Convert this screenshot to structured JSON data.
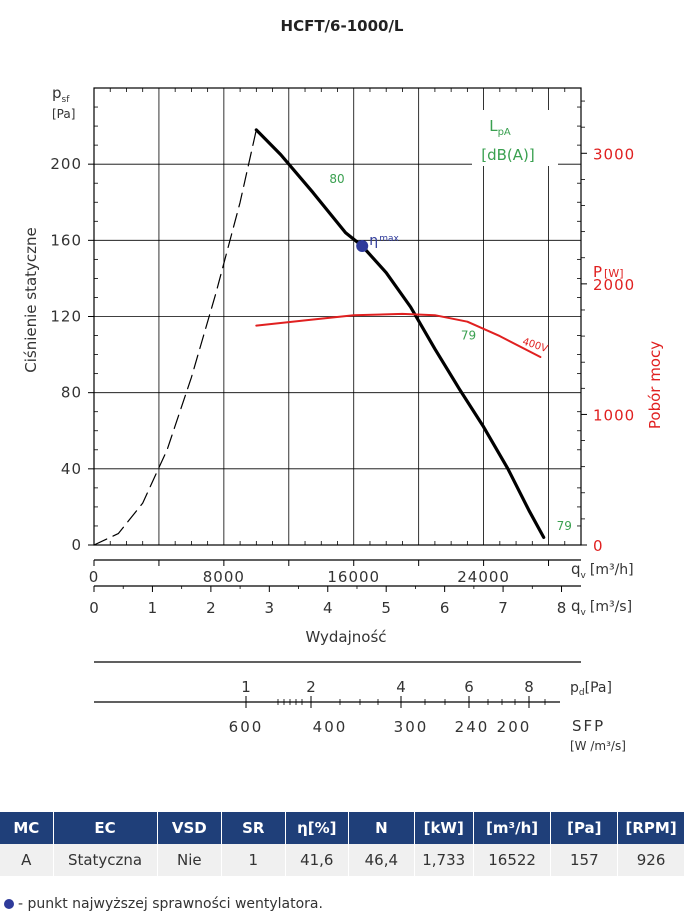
{
  "chart_data": {
    "type": "line",
    "title": "HCFT/6-1000/L",
    "ylabel": "Ciśnienie statyczne",
    "ylabel_symbol": "p",
    "ylabel_symbol_sub": "sf",
    "ylabel_unit": "[Pa]",
    "ylim": [
      0,
      240
    ],
    "yticks": [
      "0",
      "40",
      "80",
      "120",
      "160",
      "200"
    ],
    "y2label": "Pobór mocy",
    "y2label_symbol": "P",
    "y2label_unit": "[W]",
    "y2lim": [
      0,
      3500
    ],
    "y2ticks": [
      "0",
      "1000",
      "2000",
      "3000"
    ],
    "xlabel": "Wydajność",
    "x1_symbol": "q",
    "x1_symbol_sub": "v",
    "x1_unit": "[m³/h]",
    "x1ticks": [
      "0",
      "8000",
      "16000",
      "24000"
    ],
    "x2_symbol": "q",
    "x2_symbol_sub": "v",
    "x2_unit": "[m³/s]",
    "x2ticks": [
      "0",
      "1",
      "2",
      "3",
      "4",
      "5",
      "6",
      "7",
      "8"
    ],
    "xlim_m3h": [
      0,
      30000
    ],
    "sound_label_top": "L",
    "sound_label_sub": "pA",
    "sound_label_unit": "[dB(A)]",
    "series": [
      {
        "name": "",
        "style": "solid",
        "color": "#000000",
        "x": [
          10000,
          11500,
          13500,
          15500,
          16522,
          18000,
          19500,
          21000,
          22500,
          24000,
          25500,
          26800,
          27700
        ],
        "y": [
          218,
          205,
          185,
          164,
          157,
          143,
          125,
          103,
          82,
          62,
          40,
          18,
          4
        ]
      },
      {
        "name": "",
        "style": "dashed",
        "color": "#000000",
        "x": [
          0,
          1500,
          3000,
          4500,
          6000,
          7500,
          9000,
          10000
        ],
        "y": [
          0,
          6,
          22,
          50,
          88,
          132,
          180,
          218
        ]
      },
      {
        "name": "400V",
        "style": "solid",
        "color": "#e02020",
        "axis": "y2",
        "x": [
          10000,
          13000,
          16000,
          19000,
          21000,
          23000,
          25000,
          27500
        ],
        "y": [
          1680,
          1720,
          1760,
          1770,
          1760,
          1710,
          1600,
          1440
        ]
      }
    ],
    "sound_labels": [
      {
        "text": "80",
        "x": 14500,
        "y": 190
      },
      {
        "text": "79",
        "x": 22600,
        "y": 108
      },
      {
        "text": "79",
        "x": 28500,
        "y": 8
      }
    ],
    "eta_point": {
      "label": "η",
      "label_sup": "max",
      "x": 16522,
      "y": 157
    },
    "pd_scale": {
      "label": "p",
      "label_sub": "d",
      "unit": "[Pa]",
      "ticks": [
        "1",
        "2",
        "4",
        "6",
        "8"
      ]
    },
    "sfp_scale": {
      "label": "SFP",
      "unit": "[W /m³/s]",
      "ticks": [
        "600",
        "400",
        "300",
        "240",
        "200"
      ]
    }
  },
  "table": {
    "headers": [
      "MC",
      "EC",
      "VSD",
      "SR",
      "η[%]",
      "N",
      "[kW]",
      "[m³/h]",
      "[Pa]",
      "[RPM]"
    ],
    "row": [
      "A",
      "Statyczna",
      "Nie",
      "1",
      "41,6",
      "46,4",
      "1,733",
      "16522",
      "157",
      "926"
    ]
  },
  "note": "- punkt najwyższej sprawności wentylatora.",
  "colors": {
    "curve": "#000000",
    "power": "#e02020",
    "sound": "#3aa050",
    "eta": "#2e3a9a",
    "header_bg": "#1f3f79"
  }
}
